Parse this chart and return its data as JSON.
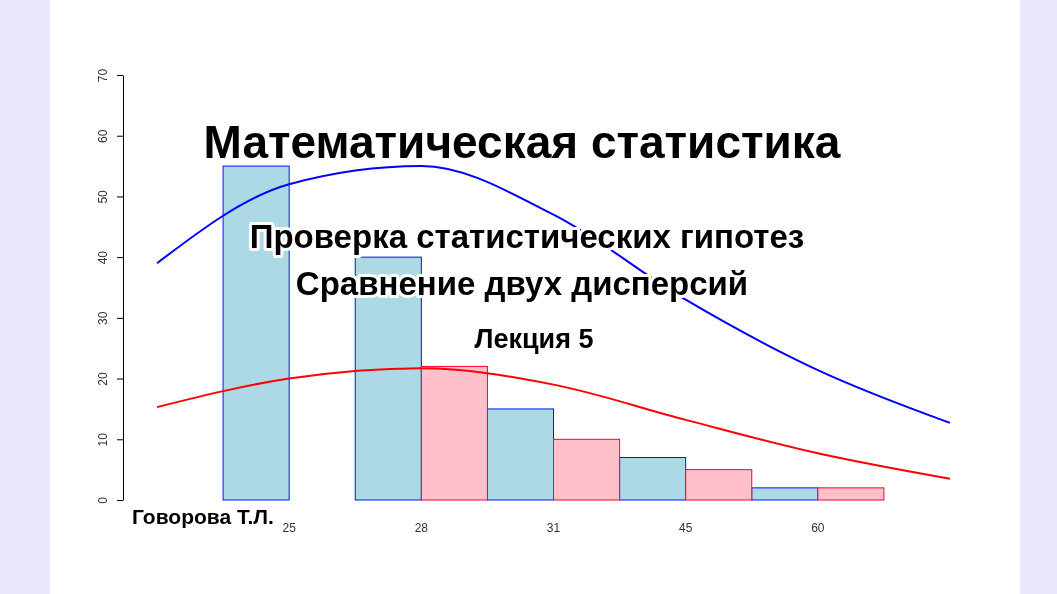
{
  "chart_data": {
    "type": "bar",
    "title": "Математическая статистика",
    "subtitle": "Проверка статистических гипотез",
    "annotations": [
      "Сравнение двух дисперсий",
      "Лекция 5",
      "Говорова Т.Л."
    ],
    "categories": [
      null,
      "25",
      "28",
      "31",
      "45",
      "60",
      null
    ],
    "series": [
      {
        "color": "#add8e6",
        "values": [
          null,
          55,
          40,
          15,
          7,
          2,
          null
        ]
      },
      {
        "color": "#ffc0cb",
        "values": [
          null,
          0,
          22,
          10,
          5,
          2,
          null
        ]
      },
      {
        "type": "line",
        "color": "#0000ff",
        "values": [
          39,
          52,
          55,
          47,
          33,
          21.4,
          12.7
        ]
      },
      {
        "type": "line",
        "color": "#ff0000",
        "values": [
          15.3,
          20,
          21.7,
          19,
          13.2,
          7.7,
          3.5
        ]
      }
    ],
    "ylim": [
      0,
      70
    ],
    "yticks": [
      0,
      10,
      20,
      30,
      40,
      50,
      60,
      70
    ]
  }
}
